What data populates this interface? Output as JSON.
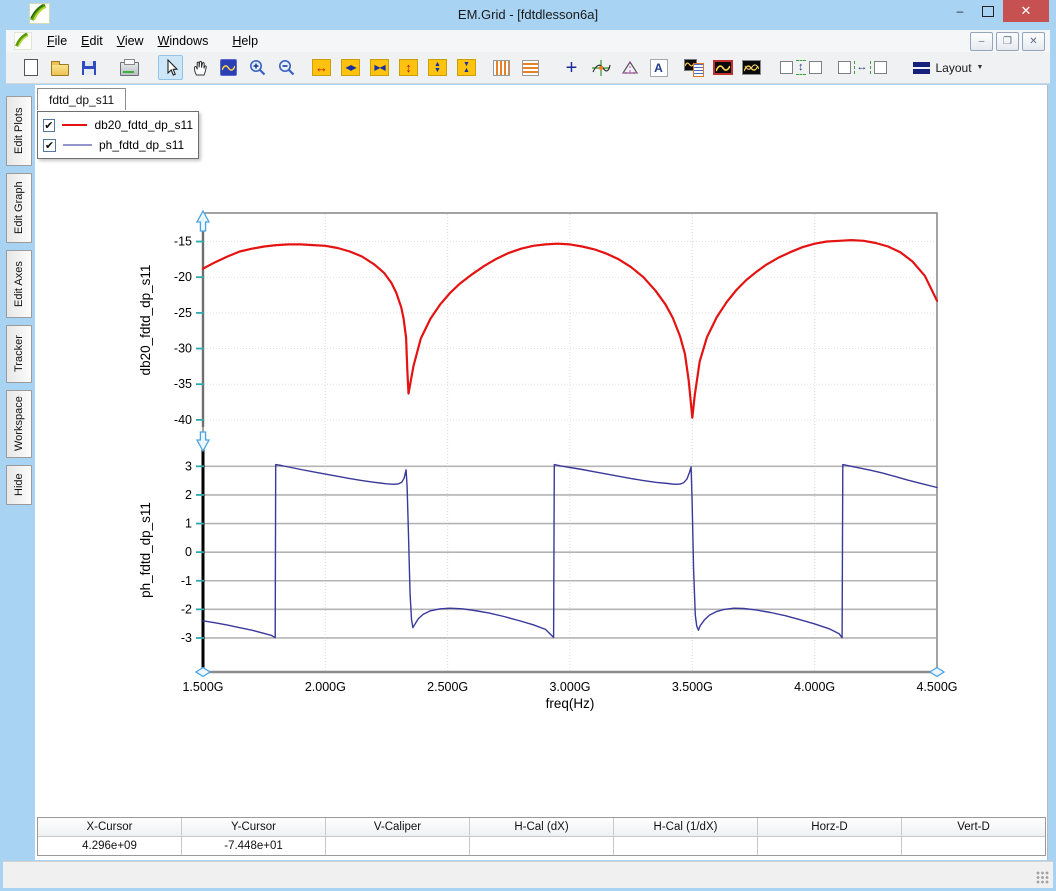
{
  "window": {
    "title": "EM.Grid - [fdtdlesson6a]",
    "controls": {
      "minimize": "–",
      "close": "✕"
    }
  },
  "mdi_controls": {
    "minimize": "–",
    "restore": "❐",
    "close": "✕"
  },
  "menu": {
    "items": [
      {
        "key": "F",
        "rest": "ile"
      },
      {
        "key": "E",
        "rest": "dit"
      },
      {
        "key": "V",
        "rest": "iew"
      },
      {
        "key": "W",
        "rest": "indows"
      },
      {
        "key": "H",
        "rest": "elp"
      }
    ]
  },
  "toolbar": {
    "layout_label": "Layout",
    "caret": "▼",
    "glyphs": {
      "h_full": "↔",
      "h_in": "◀▶",
      "h_out": "▶◀",
      "v_full": "↕",
      "up": "▲",
      "down": "▼",
      "cross": "+",
      "text": "A",
      "v_split": "↕",
      "h_split": "↔"
    },
    "items": [
      "new-file",
      "open-file",
      "save",
      "print",
      "select-arrow",
      "pan-hand",
      "zoom-window",
      "zoom-in",
      "zoom-out",
      "h-full-zoom",
      "h-zoom",
      "h-compress",
      "v-full-zoom",
      "v-zoom",
      "v-compress",
      "vertical-grid",
      "horizontal-grid",
      "axes-cross",
      "tracker",
      "delta-marker",
      "text-label",
      "legend",
      "single-graph",
      "multi-graph",
      "v-split",
      "h-split",
      "layout-dropdown"
    ]
  },
  "sidebar": {
    "tabs": [
      {
        "label": "Edit Plots"
      },
      {
        "label": "Edit Graph"
      },
      {
        "label": "Edit Axes"
      },
      {
        "label": "Tracker"
      },
      {
        "label": "Workspace"
      },
      {
        "label": "Hide"
      }
    ]
  },
  "document": {
    "tab_label": "fdtd_dp_s11"
  },
  "legend": {
    "check_glyph": "✔",
    "items": [
      {
        "label": "db20_fdtd_dp_s11",
        "color": "#e51212",
        "checked": true
      },
      {
        "label": "ph_fdtd_dp_s11",
        "color": "#9595cc",
        "checked": true
      }
    ]
  },
  "chart_data": {
    "type": "line",
    "x_axis": {
      "label": "freq(Hz)",
      "unit": "GHz",
      "xlim": [
        1.5,
        4.5
      ],
      "tick_values": [
        1.5,
        2.0,
        2.5,
        3.0,
        3.5,
        4.0,
        4.5
      ],
      "tick_labels": [
        "1.500G",
        "2.000G",
        "2.500G",
        "3.000G",
        "3.500G",
        "4.000G",
        "4.500G"
      ]
    },
    "panels": [
      {
        "ylabel": "db20_fdtd_dp_s11",
        "ylim": [
          -41,
          -11
        ],
        "yticks": [
          -15,
          -20,
          -25,
          -30,
          -35,
          -40
        ],
        "grid": "dotted",
        "series": [
          {
            "name": "db20_fdtd_dp_s11",
            "color": "#e51212",
            "width": 2.2,
            "x": [
              1.5,
              1.55,
              1.6,
              1.65,
              1.7,
              1.75,
              1.8,
              1.85,
              1.9,
              1.95,
              2.0,
              2.05,
              2.1,
              2.15,
              2.2,
              2.24,
              2.27,
              2.29,
              2.31,
              2.32,
              2.33,
              2.335,
              2.34,
              2.36,
              2.39,
              2.43,
              2.47,
              2.51,
              2.55,
              2.6,
              2.65,
              2.7,
              2.75,
              2.8,
              2.85,
              2.9,
              2.95,
              3.0,
              3.05,
              3.1,
              3.15,
              3.2,
              3.25,
              3.3,
              3.35,
              3.39,
              3.42,
              3.45,
              3.47,
              3.485,
              3.5,
              3.51,
              3.53,
              3.56,
              3.6,
              3.64,
              3.68,
              3.72,
              3.76,
              3.8,
              3.85,
              3.9,
              3.95,
              4.0,
              4.05,
              4.1,
              4.15,
              4.2,
              4.25,
              4.3,
              4.35,
              4.4,
              4.45,
              4.5
            ],
            "y": [
              -18.8,
              -17.9,
              -17.1,
              -16.4,
              -16.0,
              -15.7,
              -15.5,
              -15.4,
              -15.4,
              -15.5,
              -15.6,
              -15.9,
              -16.4,
              -17.1,
              -18.2,
              -19.4,
              -20.8,
              -22.2,
              -24.2,
              -25.8,
              -28.5,
              -33.0,
              -36.3,
              -32.5,
              -28.6,
              -25.8,
              -23.8,
              -22.2,
              -20.9,
              -19.6,
              -18.4,
              -17.4,
              -16.6,
              -16.0,
              -15.6,
              -15.4,
              -15.3,
              -15.4,
              -15.7,
              -16.1,
              -16.7,
              -17.5,
              -18.6,
              -20.0,
              -21.9,
              -23.8,
              -25.7,
              -28.3,
              -30.8,
              -34.5,
              -39.7,
              -36.5,
              -31.8,
              -28.4,
              -25.6,
              -23.5,
              -21.8,
              -20.4,
              -19.3,
              -18.3,
              -17.3,
              -16.5,
              -15.8,
              -15.3,
              -15.0,
              -14.9,
              -14.8,
              -14.9,
              -15.2,
              -15.7,
              -16.5,
              -17.8,
              -19.8,
              -23.3
            ]
          }
        ]
      },
      {
        "ylabel": "ph_fdtd_dp_s11",
        "ylim": [
          -4.05,
          4.2
        ],
        "yticks": [
          3,
          2,
          1,
          0,
          -1,
          -2,
          -3
        ],
        "grid": "solid",
        "series": [
          {
            "name": "ph_fdtd_dp_s11",
            "color": "#39399b",
            "width": 1.4,
            "x": [
              1.5,
              1.55,
              1.6,
              1.65,
              1.7,
              1.75,
              1.78,
              1.795,
              1.797,
              1.82,
              1.86,
              1.9,
              1.95,
              2.0,
              2.05,
              2.1,
              2.15,
              2.2,
              2.25,
              2.28,
              2.3,
              2.312,
              2.322,
              2.33,
              2.334,
              2.34,
              2.346,
              2.352,
              2.358,
              2.366,
              2.38,
              2.4,
              2.43,
              2.47,
              2.51,
              2.56,
              2.61,
              2.67,
              2.73,
              2.79,
              2.85,
              2.9,
              2.933,
              2.936,
              2.96,
              3.0,
              3.05,
              3.1,
              3.15,
              3.2,
              3.25,
              3.3,
              3.35,
              3.4,
              3.43,
              3.45,
              3.465,
              3.478,
              3.488,
              3.495,
              3.499,
              3.505,
              3.512,
              3.518,
              3.525,
              3.533,
              3.55,
              3.57,
              3.6,
              3.63,
              3.67,
              3.71,
              3.76,
              3.82,
              3.88,
              3.94,
              4.0,
              4.06,
              4.1,
              4.112,
              4.115,
              4.14,
              4.18,
              4.23,
              4.28,
              4.33,
              4.38,
              4.44,
              4.5
            ],
            "y": [
              -2.4,
              -2.47,
              -2.55,
              -2.64,
              -2.73,
              -2.84,
              -2.91,
              -2.99,
              3.06,
              3.03,
              2.96,
              2.89,
              2.81,
              2.73,
              2.65,
              2.57,
              2.5,
              2.44,
              2.39,
              2.37,
              2.39,
              2.44,
              2.58,
              2.88,
              2.3,
              0.6,
              -1.4,
              -2.35,
              -2.64,
              -2.52,
              -2.33,
              -2.17,
              -2.05,
              -1.98,
              -1.96,
              -1.98,
              -2.04,
              -2.13,
              -2.25,
              -2.39,
              -2.54,
              -2.7,
              -2.98,
              3.06,
              3.02,
              2.96,
              2.89,
              2.81,
              2.73,
              2.65,
              2.57,
              2.5,
              2.44,
              2.4,
              2.37,
              2.38,
              2.43,
              2.56,
              2.78,
              2.98,
              1.8,
              -0.6,
              -2.2,
              -2.58,
              -2.73,
              -2.56,
              -2.36,
              -2.2,
              -2.07,
              -2.0,
              -1.96,
              -1.97,
              -2.02,
              -2.11,
              -2.22,
              -2.36,
              -2.51,
              -2.68,
              -2.85,
              -2.99,
              3.06,
              3.02,
              2.95,
              2.86,
              2.76,
              2.64,
              2.52,
              2.39,
              2.26
            ]
          }
        ]
      }
    ]
  },
  "status_table": {
    "headers": [
      "X-Cursor",
      "Y-Cursor",
      "V-Caliper",
      "H-Cal (dX)",
      "H-Cal (1/dX)",
      "Horz-D",
      "Vert-D"
    ],
    "values": [
      "4.296e+09",
      "-7.448e+01",
      "",
      "",
      "",
      "",
      ""
    ]
  }
}
